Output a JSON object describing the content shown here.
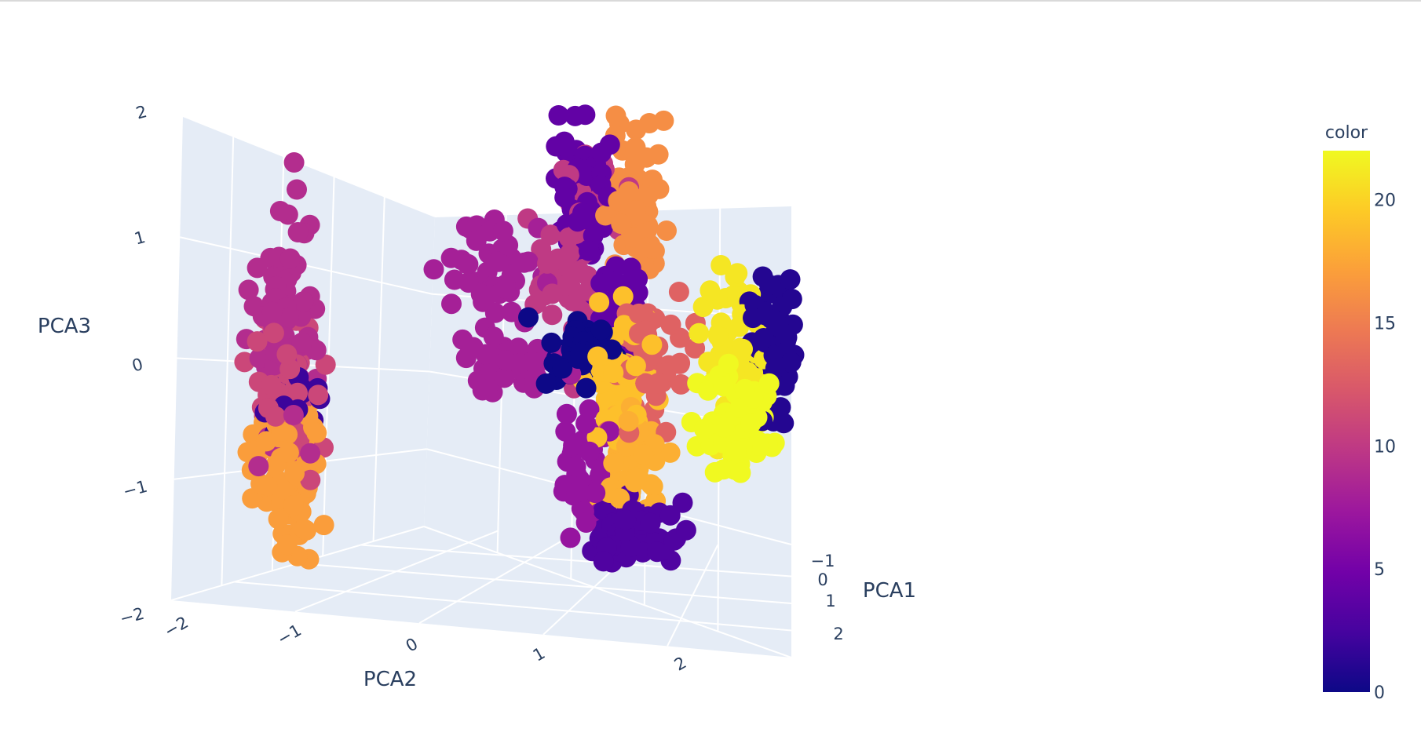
{
  "chart_data": {
    "type": "scatter",
    "subtype": "scatter3d",
    "title": "",
    "axes": {
      "x": {
        "label": "PCA1",
        "ticks": [
          "−1",
          "0",
          "1",
          "2"
        ],
        "range": [
          -1.4,
          2.4
        ]
      },
      "y": {
        "label": "PCA2",
        "ticks": [
          "−2",
          "−1",
          "0",
          "1",
          "2"
        ],
        "range": [
          -2.2,
          2.6
        ]
      },
      "z": {
        "label": "PCA3",
        "ticks": [
          "2",
          "1",
          "0",
          "−1",
          "−2"
        ],
        "range": [
          -2.0,
          2.0
        ]
      }
    },
    "grid": true,
    "scene_background": "#e5ecf6",
    "gridline_color": "#ffffff",
    "colorscale": "plasma",
    "colorscale_stops": [
      "#0d0887",
      "#46039f",
      "#7201a8",
      "#9c179e",
      "#bd3786",
      "#d8576b",
      "#ed7953",
      "#fb9f3a",
      "#fdca26",
      "#f0f921"
    ],
    "colorbar": {
      "title": "color",
      "range": [
        0,
        22
      ],
      "ticks": [
        "0",
        "5",
        "10",
        "15",
        "20"
      ],
      "placement": "right"
    },
    "clusters": [
      {
        "color_value": 9,
        "center": [
          -0.95,
          -1.45,
          0.25
        ],
        "spread": [
          0.1,
          0.12,
          0.5
        ],
        "points": 90
      },
      {
        "color_value": 11,
        "center": [
          -0.95,
          -1.45,
          -0.2
        ],
        "spread": [
          0.1,
          0.14,
          0.3
        ],
        "points": 60
      },
      {
        "color_value": 2,
        "center": [
          -0.95,
          -1.35,
          -0.35
        ],
        "spread": [
          0.08,
          0.1,
          0.18
        ],
        "points": 20
      },
      {
        "color_value": 17,
        "center": [
          -0.95,
          -1.45,
          -0.95
        ],
        "spread": [
          0.1,
          0.14,
          0.3
        ],
        "points": 70
      },
      {
        "color_value": 4,
        "center": [
          -0.6,
          0.9,
          1.35
        ],
        "spread": [
          0.1,
          0.12,
          0.3
        ],
        "points": 60
      },
      {
        "color_value": 16,
        "center": [
          -0.6,
          1.35,
          1.3
        ],
        "spread": [
          0.1,
          0.12,
          0.32
        ],
        "points": 70
      },
      {
        "color_value": 8,
        "center": [
          -0.6,
          0.2,
          0.7
        ],
        "spread": [
          0.1,
          0.2,
          0.25
        ],
        "points": 50
      },
      {
        "color_value": 10,
        "center": [
          -0.6,
          0.95,
          0.8
        ],
        "spread": [
          0.1,
          0.18,
          0.4
        ],
        "points": 70
      },
      {
        "color_value": 4,
        "center": [
          -0.4,
          1.2,
          0.45
        ],
        "spread": [
          0.1,
          0.12,
          0.25
        ],
        "points": 45
      },
      {
        "color_value": 0,
        "center": [
          0.0,
          0.85,
          0.05
        ],
        "spread": [
          0.1,
          0.15,
          0.15
        ],
        "points": 40
      },
      {
        "color_value": 8,
        "center": [
          0.0,
          0.35,
          -0.05
        ],
        "spread": [
          0.1,
          0.2,
          0.12
        ],
        "points": 40
      },
      {
        "color_value": 13,
        "center": [
          0.0,
          1.45,
          -0.05
        ],
        "spread": [
          0.1,
          0.15,
          0.25
        ],
        "points": 50
      },
      {
        "color_value": 19,
        "center": [
          0.0,
          1.2,
          -0.15
        ],
        "spread": [
          0.1,
          0.14,
          0.28
        ],
        "points": 60
      },
      {
        "color_value": 7,
        "center": [
          0.1,
          0.95,
          -0.85
        ],
        "spread": [
          0.1,
          0.1,
          0.25
        ],
        "points": 40
      },
      {
        "color_value": 18,
        "center": [
          0.1,
          1.3,
          -0.8
        ],
        "spread": [
          0.1,
          0.12,
          0.25
        ],
        "points": 45
      },
      {
        "color_value": 3,
        "center": [
          0.2,
          1.25,
          -1.4
        ],
        "spread": [
          0.1,
          0.18,
          0.12
        ],
        "points": 70
      },
      {
        "color_value": 21,
        "center": [
          0.65,
          2.05,
          0.05
        ],
        "spread": [
          0.1,
          0.12,
          0.35
        ],
        "points": 60
      },
      {
        "color_value": 1,
        "center": [
          0.65,
          2.4,
          0.15
        ],
        "spread": [
          0.1,
          0.1,
          0.3
        ],
        "points": 55
      },
      {
        "color_value": 22,
        "center": [
          0.9,
          2.1,
          -0.55
        ],
        "spread": [
          0.1,
          0.15,
          0.2
        ],
        "points": 70
      }
    ]
  }
}
